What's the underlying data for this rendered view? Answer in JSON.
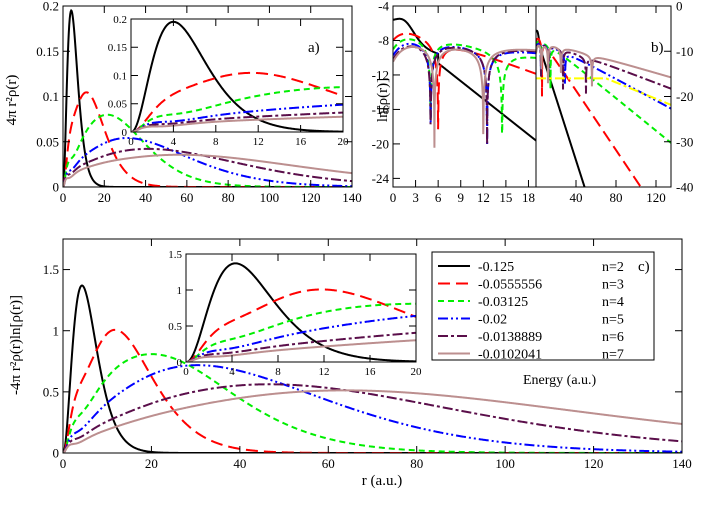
{
  "colors": {
    "n2": "#000000",
    "n3": "#ff0000",
    "n4": "#00ee00",
    "n5": "#0000ff",
    "n6": "#5a0e4a",
    "n7": "#bc8f8f",
    "n7b": "#ffff00"
  },
  "chart_data": [
    {
      "id": "a",
      "type": "line",
      "panel_label": "a)",
      "ylabel": "4π r²ρ(r)",
      "xlabel": "",
      "xlim": [
        0,
        140
      ],
      "ylim": [
        0,
        0.2
      ],
      "xticks": [
        0,
        20,
        40,
        60,
        80,
        100,
        120,
        140
      ],
      "yticks": [
        0,
        0.05,
        0.1,
        0.15,
        0.2
      ],
      "ytick_labels": [
        "0",
        "0.05",
        "0.1",
        "0.15",
        "0.2"
      ],
      "series": [
        {
          "name": "n=2",
          "peaks_r": [
            4
          ],
          "peak_values": [
            0.195
          ]
        },
        {
          "name": "n=3",
          "peaks_r": [
            3.5,
            12
          ],
          "peak_values": [
            0.04,
            0.102
          ]
        },
        {
          "name": "n=4",
          "peaks_r": [
            2.5,
            9,
            24
          ],
          "peak_values": [
            0.02,
            0.025,
            0.075
          ]
        },
        {
          "name": "n=5",
          "peaks_r": [
            2,
            7.5,
            18,
            39
          ],
          "peak_values": [
            0.012,
            0.015,
            0.02,
            0.045
          ]
        },
        {
          "name": "n=6",
          "peaks_r": [
            1.8,
            6.5,
            15,
            29,
            58
          ],
          "peak_values": [
            0.009,
            0.011,
            0.012,
            0.016,
            0.032
          ]
        },
        {
          "name": "n=7",
          "peaks_r": [
            1.5,
            6,
            13.5,
            24,
            45,
            81
          ],
          "peak_values": [
            0.007,
            0.008,
            0.009,
            0.01,
            0.013,
            0.025
          ]
        }
      ],
      "inset": {
        "xlim": [
          0,
          20
        ],
        "ylim": [
          0,
          0.2
        ],
        "xticks": [
          0,
          4,
          8,
          12,
          16,
          20
        ],
        "yticks": [
          0,
          0.05,
          0.1,
          0.15,
          0.2
        ],
        "ytick_labels": [
          "0",
          "0.05",
          "0.1",
          "0.15",
          "0.2"
        ]
      }
    },
    {
      "id": "b",
      "type": "line",
      "panel_label": "b)",
      "ylabel": "ln[ρ(r)]",
      "left": {
        "xlim": [
          0,
          19
        ],
        "ylim": [
          -25,
          -4
        ],
        "xticks": [
          0,
          3,
          6,
          9,
          12,
          15,
          18
        ],
        "yticks": [
          -24,
          -20,
          -16,
          -12,
          -8,
          -4
        ]
      },
      "right": {
        "xlim": [
          0,
          135
        ],
        "ylim": [
          -40,
          0
        ],
        "xticks": [
          40,
          80,
          120
        ],
        "yticks": [
          -40,
          -30,
          -20,
          -10,
          0
        ]
      },
      "nodes_r": {
        "n3": [
          6
        ],
        "n4": [
          5,
          14.5
        ],
        "n5": [
          5,
          12.5,
          29
        ],
        "n6": [
          5,
          12.5,
          27,
          50
        ],
        "n7": [
          5.5,
          12,
          25,
          56
        ]
      }
    },
    {
      "id": "c",
      "type": "line",
      "panel_label": "c)",
      "ylabel": "-4π r²ρ(r)ln[ρ(r)]",
      "xlabel": "r (a.u.)",
      "xlim": [
        0,
        140
      ],
      "ylim": [
        0,
        1.75
      ],
      "xticks": [
        0,
        20,
        40,
        60,
        80,
        100,
        120,
        140
      ],
      "yticks": [
        0,
        0.5,
        1,
        1.5
      ],
      "ytick_labels": [
        "0",
        "0.5",
        "1",
        "1.5"
      ],
      "legend_title": "Energy (a.u.)",
      "legend": [
        {
          "key": "n2",
          "energy": "-0.125",
          "n": "n=2"
        },
        {
          "key": "n3",
          "energy": "-0.0555556",
          "n": "n=3"
        },
        {
          "key": "n4",
          "energy": "-0.03125",
          "n": "n=4"
        },
        {
          "key": "n5",
          "energy": "-0.02",
          "n": "n=5"
        },
        {
          "key": "n6",
          "energy": "-0.0138889",
          "n": "n=6"
        },
        {
          "key": "n7",
          "energy": "-0.0102041",
          "n": "n=7"
        }
      ],
      "series": [
        {
          "name": "n=2",
          "peaks_r": [
            4.3
          ],
          "peak_values": [
            1.37
          ]
        },
        {
          "name": "n=3",
          "peaks_r": [
            3,
            12
          ],
          "peak_values": [
            0.33,
            1.0
          ]
        },
        {
          "name": "n=4",
          "peaks_r": [
            2.5,
            9,
            23.5
          ],
          "peak_values": [
            0.17,
            0.3,
            0.74
          ]
        },
        {
          "name": "n=5",
          "peaks_r": [
            2,
            7.5,
            18,
            38.5
          ],
          "peak_values": [
            0.1,
            0.15,
            0.27,
            0.59
          ]
        },
        {
          "name": "n=6",
          "peaks_r": [
            1.8,
            6.5,
            15,
            28.5,
            58
          ],
          "peak_values": [
            0.07,
            0.09,
            0.13,
            0.17,
            0.47
          ]
        },
        {
          "name": "n=7",
          "peaks_r": [
            1.5,
            6,
            13.5,
            24,
            46,
            81
          ],
          "peak_values": [
            0.05,
            0.06,
            0.08,
            0.11,
            0.16,
            0.39
          ]
        }
      ],
      "inset": {
        "xlim": [
          0,
          20
        ],
        "ylim": [
          0,
          1.5
        ],
        "xticks": [
          0,
          4,
          8,
          12,
          16,
          20
        ],
        "yticks": [
          0,
          0.5,
          1,
          1.5
        ],
        "ytick_labels": [
          "0",
          "0.5",
          "1",
          "1.5"
        ]
      }
    }
  ]
}
